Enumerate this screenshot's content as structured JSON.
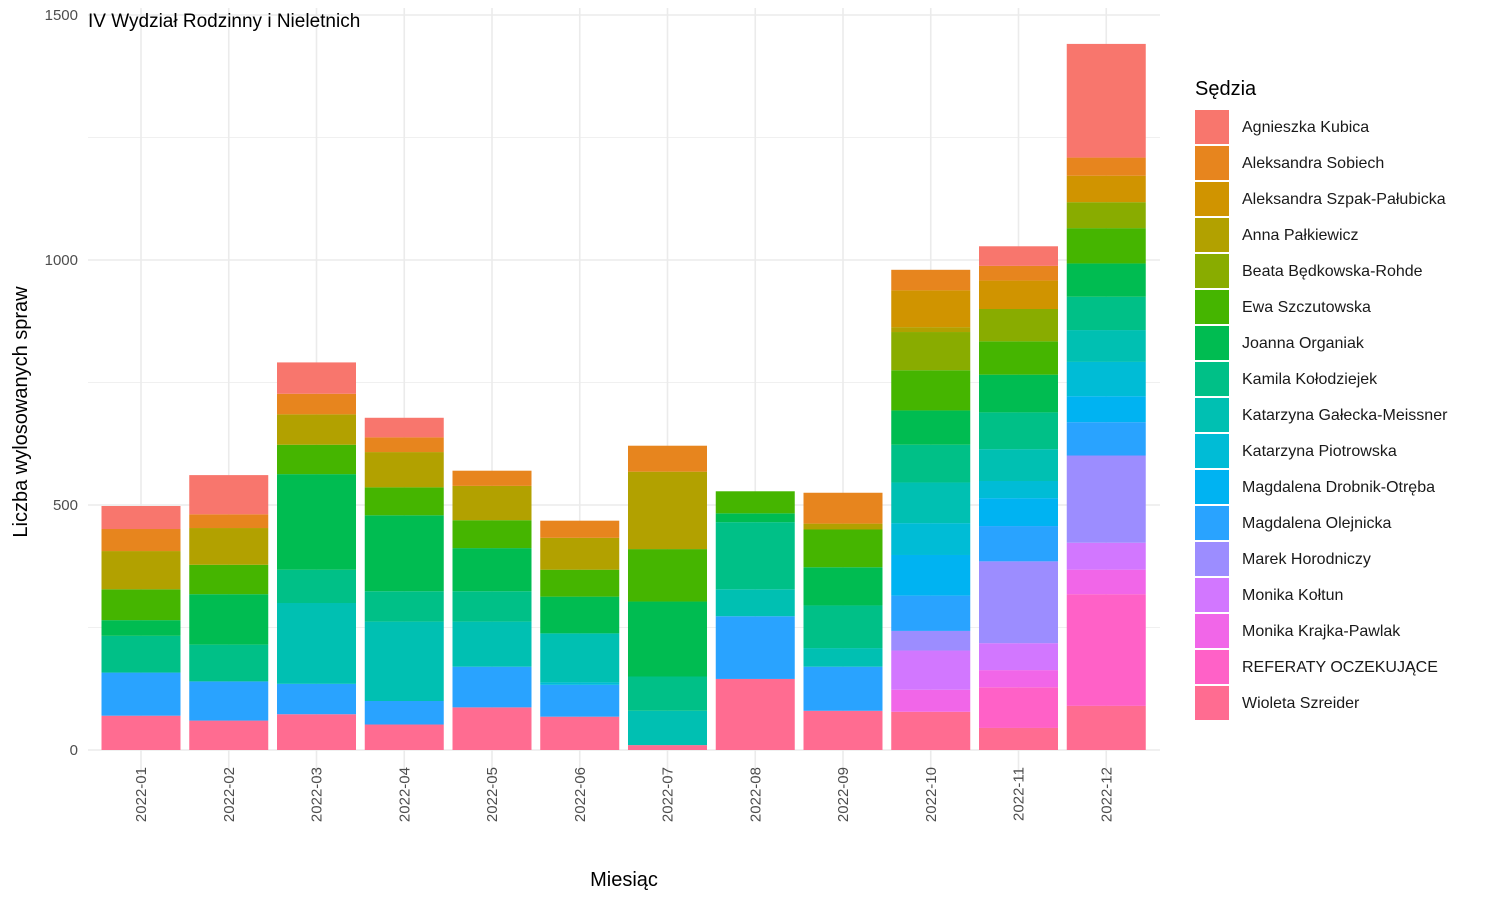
{
  "chart_data": {
    "type": "bar",
    "stacked": true,
    "title": "IV Wydział Rodzinny i Nieletnich",
    "xlabel": "Miesiąc",
    "ylabel": "Liczba wylosowanych spraw",
    "ylim": [
      0,
      1500
    ],
    "yticks": [
      0,
      500,
      1000,
      1500
    ],
    "grid": true,
    "legend_title": "Sędzia",
    "legend_position": "right",
    "categories": [
      "2022-01",
      "2022-02",
      "2022-03",
      "2022-04",
      "2022-05",
      "2022-06",
      "2022-07",
      "2022-08",
      "2022-09",
      "2022-10",
      "2022-11",
      "2022-12"
    ],
    "series": [
      {
        "name": "Agnieszka Kubica",
        "color": "#F8766D",
        "values": [
          47,
          80,
          64,
          40,
          0,
          0,
          0,
          0,
          0,
          0,
          40,
          232
        ]
      },
      {
        "name": "Aleksandra Sobiech",
        "color": "#E7851E",
        "values": [
          45,
          28,
          42,
          30,
          31,
          35,
          53,
          0,
          63,
          42,
          30,
          37
        ]
      },
      {
        "name": "Aleksandra Szpak-Pałubicka",
        "color": "#D09400",
        "values": [
          0,
          0,
          0,
          0,
          0,
          0,
          0,
          0,
          0,
          75,
          58,
          54
        ]
      },
      {
        "name": "Anna Pałkiewicz",
        "color": "#B2A100",
        "values": [
          78,
          75,
          62,
          72,
          70,
          65,
          158,
          0,
          12,
          10,
          0,
          0
        ]
      },
      {
        "name": "Beata Będkowska-Rohde",
        "color": "#89AC00",
        "values": [
          0,
          0,
          0,
          0,
          0,
          0,
          0,
          0,
          0,
          78,
          66,
          53
        ]
      },
      {
        "name": "Ewa Szczutowska",
        "color": "#45B500",
        "values": [
          63,
          60,
          60,
          57,
          57,
          55,
          107,
          45,
          77,
          82,
          68,
          72
        ]
      },
      {
        "name": "Joanna Organiak",
        "color": "#00BC51",
        "values": [
          32,
          103,
          195,
          155,
          88,
          75,
          153,
          18,
          78,
          70,
          77,
          68
        ]
      },
      {
        "name": "Kamila Kołodziejek",
        "color": "#00C087",
        "values": [
          75,
          75,
          68,
          62,
          62,
          0,
          70,
          137,
          87,
          77,
          75,
          68
        ]
      },
      {
        "name": "Katarzyna Gałecka-Meissner",
        "color": "#00C0B2",
        "values": [
          0,
          0,
          165,
          162,
          92,
          100,
          70,
          55,
          38,
          83,
          65,
          65
        ]
      },
      {
        "name": "Katarzyna Piotrowska",
        "color": "#00BCD6",
        "values": [
          0,
          0,
          0,
          0,
          0,
          5,
          0,
          0,
          0,
          65,
          35,
          70
        ]
      },
      {
        "name": "Magdalena Drobnik-Otręba",
        "color": "#00B3F2",
        "values": [
          0,
          0,
          0,
          0,
          0,
          0,
          0,
          0,
          0,
          83,
          57,
          53
        ]
      },
      {
        "name": "Magdalena Olejnicka",
        "color": "#29A3FF",
        "values": [
          88,
          80,
          62,
          48,
          83,
          65,
          0,
          128,
          90,
          72,
          72,
          68
        ]
      },
      {
        "name": "Marek Horodniczy",
        "color": "#9C8DFF",
        "values": [
          0,
          0,
          0,
          0,
          0,
          0,
          0,
          0,
          0,
          40,
          167,
          178
        ]
      },
      {
        "name": "Monika Kołtun",
        "color": "#D277FF",
        "values": [
          0,
          0,
          0,
          0,
          0,
          0,
          0,
          0,
          0,
          80,
          55,
          55
        ]
      },
      {
        "name": "Monika Krajka-Pawlak",
        "color": "#F166E8",
        "values": [
          0,
          0,
          0,
          0,
          0,
          0,
          0,
          0,
          0,
          45,
          35,
          50
        ]
      },
      {
        "name": "REFERATY OCZEKUJĄCE",
        "color": "#FF61C7",
        "values": [
          0,
          0,
          0,
          0,
          0,
          0,
          0,
          0,
          0,
          0,
          83,
          228
        ]
      },
      {
        "name": "Wioleta Szreider",
        "color": "#FF6C91",
        "values": [
          70,
          60,
          73,
          52,
          87,
          68,
          10,
          145,
          80,
          78,
          45,
          90
        ]
      }
    ]
  }
}
